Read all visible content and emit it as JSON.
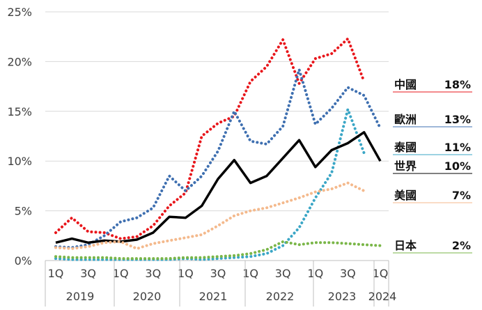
{
  "chart_data": {
    "type": "line",
    "title": "",
    "xlabel": "",
    "ylabel": "",
    "ylim": [
      0,
      25
    ],
    "yticks": [
      "0%",
      "5%",
      "10%",
      "15%",
      "20%",
      "25%"
    ],
    "ytick_values": [
      0,
      5,
      10,
      15,
      20,
      25
    ],
    "grid": "horizontal",
    "x_labels": [
      {
        "q": 1,
        "text": "1Q"
      },
      {
        "q": 3,
        "text": "3Q"
      },
      {
        "q": 5,
        "text": "1Q"
      },
      {
        "q": 7,
        "text": "3Q"
      },
      {
        "q": 9,
        "text": "1Q"
      },
      {
        "q": 11,
        "text": "3Q"
      },
      {
        "q": 13,
        "text": "1Q"
      },
      {
        "q": 15,
        "text": "3Q"
      },
      {
        "q": 17,
        "text": "1Q"
      },
      {
        "q": 19,
        "text": "3Q"
      },
      {
        "q": 21,
        "text": "1Q"
      }
    ],
    "years": [
      "2019",
      "2020",
      "2021",
      "2022",
      "2023",
      "2024"
    ],
    "series": [
      {
        "name": "中國",
        "label_value": "18%",
        "color": "#e8161b",
        "style": "dotted",
        "values": [
          2.8,
          4.3,
          2.9,
          2.8,
          2.2,
          2.4,
          3.5,
          5.5,
          6.8,
          12.5,
          13.8,
          14.5,
          18.0,
          19.5,
          22.2,
          17.8,
          20.3,
          20.8,
          22.3,
          18.0
        ]
      },
      {
        "name": "歐洲",
        "label_value": "13%",
        "color": "#3e6fb0",
        "style": "dotted",
        "values": [
          1.4,
          1.3,
          1.6,
          2.5,
          3.9,
          4.3,
          5.3,
          8.5,
          7.0,
          8.5,
          11.0,
          15.0,
          12.0,
          11.7,
          13.5,
          19.2,
          13.7,
          15.3,
          17.4,
          16.6,
          13.3
        ]
      },
      {
        "name": "泰國",
        "label_value": "11%",
        "color": "#3aa6c6",
        "style": "dotted",
        "values": [
          0.2,
          0.1,
          0.1,
          0.1,
          0.1,
          0.1,
          0.1,
          0.1,
          0.2,
          0.1,
          0.2,
          0.3,
          0.4,
          0.7,
          1.5,
          3.3,
          6.3,
          8.8,
          15.2,
          10.8
        ]
      },
      {
        "name": "世界",
        "label_value": "10%",
        "color": "#000000",
        "style": "solid",
        "values": [
          1.8,
          2.2,
          1.8,
          2.0,
          1.9,
          2.1,
          2.8,
          4.4,
          4.3,
          5.5,
          8.2,
          10.1,
          7.8,
          8.5,
          10.3,
          12.1,
          9.4,
          11.1,
          11.8,
          12.9,
          10.0
        ]
      },
      {
        "name": "美國",
        "label_value": "7%",
        "color": "#f4b98c",
        "style": "dotted",
        "values": [
          1.3,
          1.2,
          1.4,
          1.8,
          1.9,
          1.2,
          1.7,
          2.0,
          2.3,
          2.6,
          3.5,
          4.5,
          5.0,
          5.3,
          5.8,
          6.3,
          6.9,
          7.2,
          7.8,
          7.0
        ]
      },
      {
        "name": "日本",
        "label_value": "2%",
        "color": "#7ab648",
        "style": "dotted",
        "values": [
          0.4,
          0.3,
          0.3,
          0.3,
          0.2,
          0.2,
          0.2,
          0.2,
          0.3,
          0.3,
          0.4,
          0.5,
          0.7,
          1.1,
          1.9,
          1.6,
          1.8,
          1.8,
          1.7,
          1.6,
          1.5
        ]
      }
    ]
  }
}
